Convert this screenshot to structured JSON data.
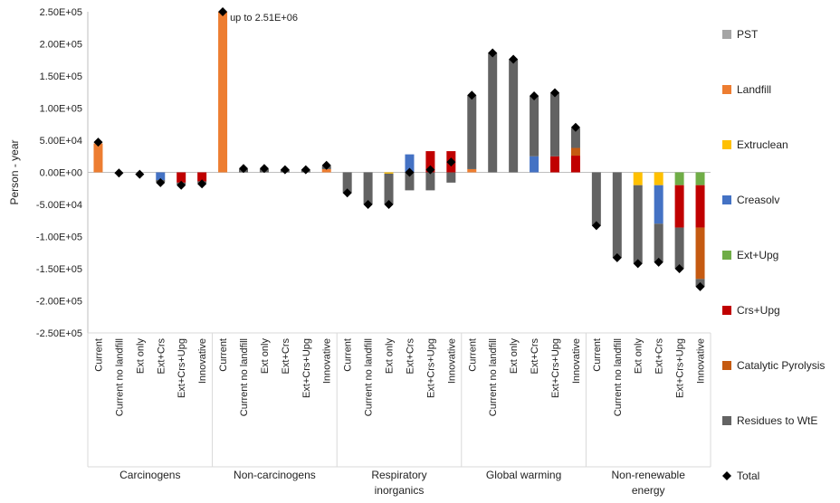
{
  "chart_data": {
    "type": "bar",
    "stacked": true,
    "ylabel": "Person - year",
    "ylim": [
      -250000,
      250000
    ],
    "yticks": [
      "2.50E+05",
      "2.00E+05",
      "1.50E+05",
      "1.00E+05",
      "5.00E+04",
      "0.00E+00",
      "-5.00E+04",
      "-1.00E+05",
      "-1.50E+05",
      "-2.00E+05",
      "-2.50E+05"
    ],
    "ytick_values": [
      250000,
      200000,
      150000,
      100000,
      50000,
      0,
      -50000,
      -100000,
      -150000,
      -200000,
      -250000
    ],
    "scenarios": [
      "Current",
      "Current no landfill",
      "Ext only",
      "Ext+Crs",
      "Ext+Crs+Upg",
      "Innovative"
    ],
    "groups": [
      {
        "name": "Carcinogens"
      },
      {
        "name": "Non-carcinogens"
      },
      {
        "name": "Respiratory inorganics"
      },
      {
        "name": "Global warming"
      },
      {
        "name": "Non-renewable energy"
      }
    ],
    "series": [
      {
        "name": "PST",
        "color": "#a5a5a5"
      },
      {
        "name": "Landfill",
        "color": "#ed7d31"
      },
      {
        "name": "Extruclean",
        "color": "#ffc000"
      },
      {
        "name": "Creasolv",
        "color": "#4472c4"
      },
      {
        "name": "Ext+Upg",
        "color": "#70ad47"
      },
      {
        "name": "Crs+Upg",
        "color": "#c00000"
      },
      {
        "name": "Catalytic Pyrolysis",
        "color": "#c55a11"
      },
      {
        "name": "Residues to WtE",
        "color": "#636363"
      },
      {
        "name": "Total",
        "color": "#000000",
        "marker": "diamond"
      }
    ],
    "bars": [
      [
        {
          "segments": [
            {
              "s": "Landfill",
              "v": 45000
            }
          ],
          "total": 47000
        },
        {
          "segments": [],
          "total": -1000
        },
        {
          "segments": [],
          "total": -3000
        },
        {
          "segments": [
            {
              "s": "Creasolv",
              "v": -12000
            },
            {
              "s": "Residues to WtE",
              "v": -3000
            }
          ],
          "total": -16000
        },
        {
          "segments": [
            {
              "s": "Crs+Upg",
              "v": -16000
            },
            {
              "s": "Residues to WtE",
              "v": -3000
            }
          ],
          "total": -20000
        },
        {
          "segments": [
            {
              "s": "Crs+Upg",
              "v": -14000
            },
            {
              "s": "Residues to WtE",
              "v": -3000
            }
          ],
          "total": -18000
        }
      ],
      [
        {
          "segments": [
            {
              "s": "Landfill",
              "v": 250000
            }
          ],
          "total": 250000
        },
        {
          "segments": [
            {
              "s": "Residues to WtE",
              "v": 5000
            }
          ],
          "total": 6000
        },
        {
          "segments": [
            {
              "s": "Residues to WtE",
              "v": 5000
            }
          ],
          "total": 6000
        },
        {
          "segments": [
            {
              "s": "Residues to WtE",
              "v": 4000
            }
          ],
          "total": 4000
        },
        {
          "segments": [
            {
              "s": "Residues to WtE",
              "v": 4000
            }
          ],
          "total": 4000
        },
        {
          "segments": [
            {
              "s": "Landfill",
              "v": 5000
            },
            {
              "s": "Residues to WtE",
              "v": 5000
            }
          ],
          "total": 11000
        }
      ],
      [
        {
          "segments": [
            {
              "s": "Residues to WtE",
              "v": -32000
            }
          ],
          "total": -32000
        },
        {
          "segments": [
            {
              "s": "Residues to WtE",
              "v": -50000
            }
          ],
          "total": -50000
        },
        {
          "segments": [
            {
              "s": "Extruclean",
              "v": -2000
            },
            {
              "s": "Residues to WtE",
              "v": -48000
            }
          ],
          "total": -50000
        },
        {
          "segments": [
            {
              "s": "Creasolv",
              "v": 28000
            },
            {
              "s": "Residues to WtE",
              "v": -28000
            }
          ],
          "total": 0
        },
        {
          "segments": [
            {
              "s": "Crs+Upg",
              "v": 33000
            },
            {
              "s": "Residues to WtE",
              "v": -28000
            }
          ],
          "total": 4000
        },
        {
          "segments": [
            {
              "s": "Crs+Upg",
              "v": 33000
            },
            {
              "s": "Residues to WtE",
              "v": -16000
            }
          ],
          "total": 16000
        }
      ],
      [
        {
          "segments": [
            {
              "s": "Landfill",
              "v": 5000
            },
            {
              "s": "Residues to WtE",
              "v": 115000
            }
          ],
          "total": 120000
        },
        {
          "segments": [
            {
              "s": "Residues to WtE",
              "v": 186000
            }
          ],
          "total": 186000
        },
        {
          "segments": [
            {
              "s": "Residues to WtE",
              "v": 176000
            }
          ],
          "total": 176000
        },
        {
          "segments": [
            {
              "s": "Creasolv",
              "v": 25000
            },
            {
              "s": "Residues to WtE",
              "v": 94000
            }
          ],
          "total": 119000
        },
        {
          "segments": [
            {
              "s": "Crs+Upg",
              "v": 25000
            },
            {
              "s": "Residues to WtE",
              "v": 99000
            }
          ],
          "total": 124000
        },
        {
          "segments": [
            {
              "s": "Crs+Upg",
              "v": 26000
            },
            {
              "s": "Catalytic Pyrolysis",
              "v": 12000
            },
            {
              "s": "Residues to WtE",
              "v": 31000
            }
          ],
          "total": 70000
        }
      ],
      [
        {
          "segments": [
            {
              "s": "Residues to WtE",
              "v": -83000
            }
          ],
          "total": -83000
        },
        {
          "segments": [
            {
              "s": "Residues to WtE",
              "v": -133000
            }
          ],
          "total": -133000
        },
        {
          "segments": [
            {
              "s": "Extruclean",
              "v": -20000
            },
            {
              "s": "Residues to WtE",
              "v": -122000
            }
          ],
          "total": -142000
        },
        {
          "segments": [
            {
              "s": "Extruclean",
              "v": -20000
            },
            {
              "s": "Creasolv",
              "v": -60000
            },
            {
              "s": "Residues to WtE",
              "v": -60000
            }
          ],
          "total": -140000
        },
        {
          "segments": [
            {
              "s": "Ext+Upg",
              "v": -20000
            },
            {
              "s": "Crs+Upg",
              "v": -66000
            },
            {
              "s": "Residues to WtE",
              "v": -64000
            }
          ],
          "total": -150000
        },
        {
          "segments": [
            {
              "s": "Ext+Upg",
              "v": -20000
            },
            {
              "s": "Crs+Upg",
              "v": -66000
            },
            {
              "s": "Catalytic Pyrolysis",
              "v": -80000
            },
            {
              "s": "Residues to WtE",
              "v": -12000
            }
          ],
          "total": -178000
        }
      ]
    ],
    "annotations": [
      {
        "text": "up to 2.51E+06",
        "group": 1,
        "scenario": 0
      }
    ]
  }
}
